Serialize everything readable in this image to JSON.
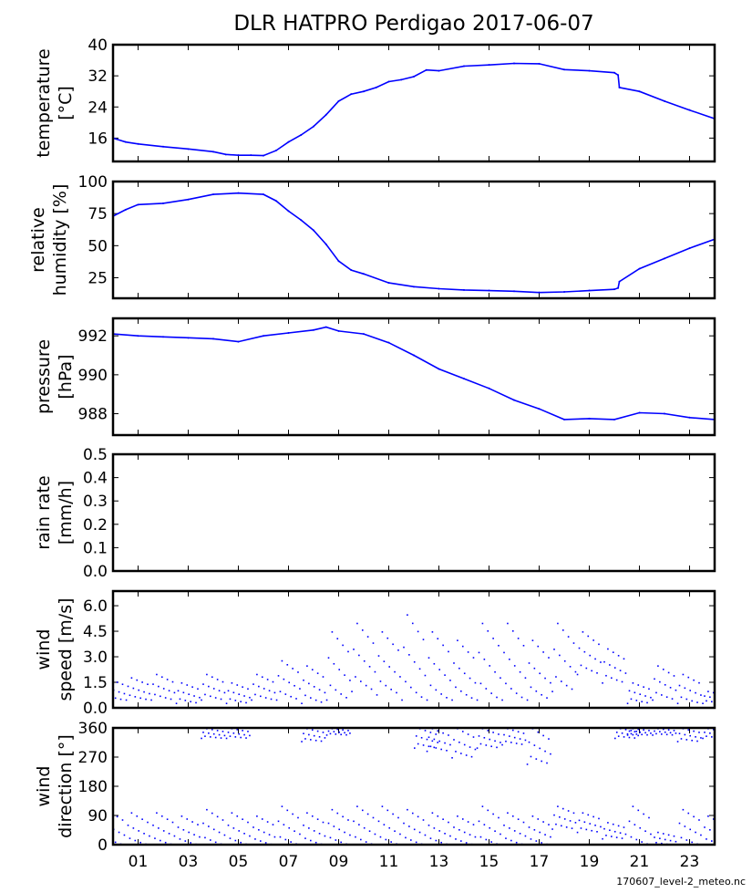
{
  "footer": "170607_level-2_meteo.nc",
  "chart_data": {
    "title": "DLR HATPRO  Perdigao  2017-06-07",
    "type": "multi-panel time series",
    "x_range": [
      0,
      24
    ],
    "x_ticks": [
      1,
      3,
      5,
      7,
      9,
      11,
      13,
      15,
      17,
      19,
      21,
      23
    ],
    "x_tick_labels": [
      "01",
      "03",
      "05",
      "07",
      "09",
      "11",
      "13",
      "15",
      "17",
      "19",
      "21",
      "23"
    ],
    "panels": [
      {
        "name": "temperature",
        "type": "line",
        "ylabel": [
          "temperature",
          "[°C]"
        ],
        "ylim": [
          10,
          40
        ],
        "yticks": [
          16,
          24,
          32,
          40
        ],
        "ytick_labels": [
          "16",
          "24",
          "32",
          "40"
        ],
        "x": [
          0,
          0.5,
          1,
          2,
          3,
          4,
          4.5,
          5,
          5.5,
          6,
          6.5,
          7,
          7.5,
          8,
          8.5,
          9,
          9.5,
          10,
          10.5,
          11,
          11.5,
          12,
          12.5,
          13,
          14,
          15,
          16,
          17,
          18,
          19,
          20,
          20.15,
          20.2,
          21,
          22,
          23,
          24
        ],
        "y": [
          16,
          15,
          14.5,
          13.8,
          13.2,
          12.5,
          11.8,
          11.6,
          11.6,
          11.5,
          12.8,
          15,
          16.8,
          19,
          22,
          25.5,
          27.3,
          28,
          29,
          30.5,
          31,
          31.8,
          33.5,
          33.3,
          34.5,
          34.8,
          35.2,
          35.1,
          33.6,
          33.3,
          32.8,
          32.2,
          29,
          28,
          25.5,
          23.2,
          21
        ]
      },
      {
        "name": "relative-humidity",
        "type": "line",
        "ylabel": [
          "relative",
          "humidity [%]"
        ],
        "ylim": [
          9,
          100
        ],
        "yticks": [
          25,
          50,
          75,
          100
        ],
        "ytick_labels": [
          "25",
          "50",
          "75",
          "100"
        ],
        "x": [
          0,
          0.5,
          1,
          2,
          3,
          4,
          5,
          6,
          6.5,
          7,
          7.5,
          8,
          8.5,
          9,
          9.5,
          10,
          11,
          12,
          13,
          14,
          15,
          16,
          17,
          18,
          19,
          20,
          20.15,
          20.2,
          21,
          22,
          23,
          24
        ],
        "y": [
          73,
          78,
          82,
          83,
          86,
          90,
          91,
          90,
          85,
          77,
          70,
          62,
          51,
          38,
          31,
          28,
          21,
          18,
          16.5,
          15.5,
          15,
          14.5,
          13.5,
          14,
          15,
          16,
          17,
          22,
          32,
          40,
          48,
          55
        ]
      },
      {
        "name": "pressure",
        "type": "line",
        "ylabel": [
          "pressure",
          "[hPa]"
        ],
        "ylim": [
          986.9,
          992.9
        ],
        "yticks": [
          988,
          990,
          992
        ],
        "ytick_labels": [
          "988",
          "990",
          "992"
        ],
        "x": [
          0,
          1,
          2,
          3,
          4,
          5,
          6,
          7,
          8,
          8.5,
          9,
          10,
          11,
          12,
          13,
          14,
          15,
          16,
          17,
          18,
          19,
          20,
          21,
          22,
          23,
          24
        ],
        "y": [
          992.1,
          992.0,
          991.95,
          991.9,
          991.85,
          991.7,
          992.0,
          992.15,
          992.3,
          992.45,
          992.25,
          992.1,
          991.65,
          991.0,
          990.3,
          989.8,
          989.3,
          988.7,
          988.25,
          987.7,
          987.75,
          987.7,
          988.05,
          988.0,
          987.8,
          987.7
        ]
      },
      {
        "name": "rain-rate",
        "type": "line",
        "ylabel": [
          "rain rate",
          "[mm/h]"
        ],
        "ylim": [
          0,
          0.5
        ],
        "yticks": [
          0,
          0.1,
          0.2,
          0.3,
          0.4,
          0.5
        ],
        "ytick_labels": [
          "0.0",
          "0.1",
          "0.2",
          "0.3",
          "0.4",
          "0.5"
        ],
        "x": [],
        "y": []
      },
      {
        "name": "wind-speed",
        "type": "scatter-range",
        "ylabel": [
          "wind",
          "speed [m/s]"
        ],
        "ylim": [
          0,
          6.86
        ],
        "yticks": [
          0,
          1.5,
          3,
          4.5,
          6
        ],
        "ytick_labels": [
          "0.0",
          "1.5",
          "3.0",
          "4.5",
          "6.0"
        ],
        "ranges": [
          [
            0,
            0.5,
            1.8
          ],
          [
            1,
            0.5,
            1.8
          ],
          [
            2,
            0.5,
            2.0
          ],
          [
            3,
            0.3,
            1.5
          ],
          [
            4,
            0.5,
            2.0
          ],
          [
            5,
            0.3,
            1.5
          ],
          [
            6,
            0.5,
            2.0
          ],
          [
            7,
            0.5,
            2.8
          ],
          [
            8,
            0.3,
            2.5
          ],
          [
            9,
            0.5,
            4.5
          ],
          [
            10,
            1.0,
            5.0
          ],
          [
            11,
            0.8,
            4.5
          ],
          [
            12,
            0.5,
            5.5
          ],
          [
            13,
            0.5,
            4.5
          ],
          [
            14,
            0.5,
            4.0
          ],
          [
            15,
            0.5,
            5.0
          ],
          [
            16,
            0.5,
            5.0
          ],
          [
            17,
            0.5,
            4.0
          ],
          [
            18,
            1.0,
            5.0
          ],
          [
            19,
            2.0,
            4.5
          ],
          [
            20,
            1.5,
            3.5
          ],
          [
            21,
            0.3,
            1.5
          ],
          [
            22,
            0.5,
            2.5
          ],
          [
            23,
            0.3,
            2.0
          ],
          [
            24,
            0.3,
            1.0
          ]
        ]
      },
      {
        "name": "wind-direction",
        "type": "scatter-range",
        "ylabel": [
          "wind",
          "direction [°]"
        ],
        "ylim": [
          0,
          360
        ],
        "yticks": [
          0,
          90,
          180,
          270,
          360
        ],
        "ytick_labels": [
          "0",
          "90",
          "180",
          "270",
          "360"
        ],
        "ranges": [
          [
            0,
            0,
            110
          ],
          [
            1,
            0,
            100
          ],
          [
            2,
            0,
            100
          ],
          [
            3,
            0,
            90
          ],
          [
            4,
            0,
            110
          ],
          [
            5,
            0,
            100
          ],
          [
            6,
            0,
            90
          ],
          [
            7,
            0,
            120
          ],
          [
            8,
            0,
            100
          ],
          [
            9,
            0,
            110
          ],
          [
            10,
            0,
            120
          ],
          [
            11,
            0,
            120
          ],
          [
            12,
            0,
            110
          ],
          [
            13,
            0,
            100
          ],
          [
            14,
            0,
            90
          ],
          [
            15,
            0,
            120
          ],
          [
            16,
            0,
            100
          ],
          [
            17,
            0,
            90
          ],
          [
            18,
            50,
            120
          ],
          [
            19,
            40,
            100
          ],
          [
            20,
            20,
            70
          ],
          [
            21,
            0,
            120
          ],
          [
            22,
            0,
            40
          ],
          [
            23,
            0,
            110
          ],
          [
            24,
            0,
            90
          ],
          [
            4,
            330,
            360
          ],
          [
            5,
            330,
            360
          ],
          [
            8,
            320,
            360
          ],
          [
            9,
            340,
            360
          ],
          [
            12.5,
            300,
            360
          ],
          [
            13,
            290,
            360
          ],
          [
            14,
            270,
            360
          ],
          [
            15,
            300,
            360
          ],
          [
            16,
            310,
            360
          ],
          [
            17,
            250,
            360
          ],
          [
            20.5,
            330,
            360
          ],
          [
            21,
            340,
            360
          ],
          [
            22,
            340,
            360
          ],
          [
            23,
            320,
            360
          ],
          [
            24,
            330,
            360
          ]
        ]
      }
    ]
  }
}
